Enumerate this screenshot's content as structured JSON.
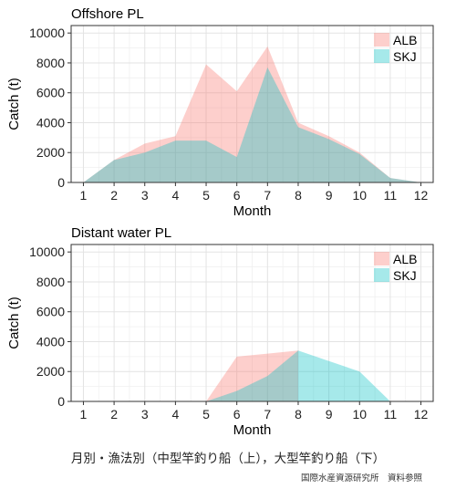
{
  "chart_data": [
    {
      "type": "area",
      "title": "Offshore PL",
      "xlabel": "Month",
      "ylabel": "Catch (t)",
      "x": [
        1,
        2,
        3,
        4,
        5,
        6,
        7,
        8,
        9,
        10,
        11,
        12
      ],
      "xlim": [
        0.6,
        12.4
      ],
      "ylim": [
        0,
        10500
      ],
      "yticks": [
        0,
        2000,
        4000,
        6000,
        8000,
        10000
      ],
      "grid": true,
      "legend_position": "right",
      "series": [
        {
          "name": "ALB",
          "color": "#F8766D",
          "values": [
            0,
            1500,
            2600,
            3100,
            7900,
            6100,
            9100,
            4000,
            3100,
            2000,
            300,
            0
          ]
        },
        {
          "name": "SKJ",
          "color": "#00BFC4",
          "values": [
            0,
            1500,
            2000,
            2800,
            2800,
            1700,
            7700,
            3700,
            2900,
            1900,
            300,
            0
          ]
        }
      ]
    },
    {
      "type": "area",
      "title": "Distant water PL",
      "xlabel": "Month",
      "ylabel": "Catch (t)",
      "x": [
        1,
        2,
        3,
        4,
        5,
        6,
        7,
        8,
        9,
        10,
        11,
        12
      ],
      "xlim": [
        0.6,
        12.4
      ],
      "ylim": [
        0,
        10500
      ],
      "yticks": [
        0,
        2000,
        4000,
        6000,
        8000,
        10000
      ],
      "grid": true,
      "legend_position": "right",
      "series": [
        {
          "name": "ALB",
          "color": "#F8766D",
          "values": [
            null,
            null,
            null,
            null,
            0,
            3000,
            3200,
            3400,
            null,
            null,
            null,
            null
          ]
        },
        {
          "name": "SKJ",
          "color": "#00BFC4",
          "values": [
            null,
            null,
            null,
            null,
            0,
            700,
            1700,
            3400,
            2700,
            2000,
            0,
            null
          ]
        }
      ]
    }
  ],
  "caption": "月別・漁法別（中型竿釣り船（上），大型竿釣り船（下）",
  "credit": "国際水産資源研究所　資料参照"
}
